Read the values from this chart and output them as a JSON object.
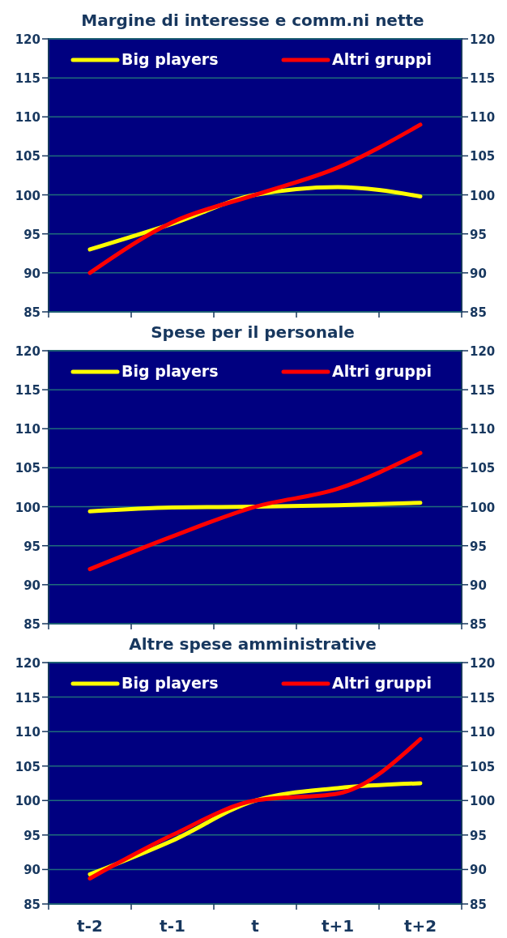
{
  "chart_data": [
    {
      "type": "line",
      "title": "Margine di interesse e comm.ni nette",
      "categories": [
        null,
        null,
        null,
        null,
        null
      ],
      "series": [
        {
          "name": "Big players",
          "color": "#ffff00",
          "values": [
            93,
            96.3,
            100,
            101,
            99.8
          ]
        },
        {
          "name": "Altri gruppi",
          "color": "#ff0000",
          "values": [
            90,
            96.5,
            100,
            103.5,
            109
          ]
        }
      ],
      "ylim": [
        85,
        120
      ],
      "yticks": [
        85,
        90,
        95,
        100,
        105,
        110,
        115,
        120
      ],
      "y2lim": [
        85,
        120
      ],
      "y2ticks": [
        85,
        90,
        95,
        100,
        105,
        110,
        115,
        120
      ],
      "grid": "y",
      "legend": "top",
      "tick_labels": "y"
    },
    {
      "type": "line",
      "title": "Spese per il personale",
      "categories": [
        null,
        null,
        null,
        null,
        null
      ],
      "series": [
        {
          "name": "Big players",
          "color": "#ffff00",
          "values": [
            99.4,
            99.9,
            100,
            100.2,
            100.5
          ]
        },
        {
          "name": "Altri gruppi",
          "color": "#ff0000",
          "values": [
            92,
            96.2,
            100,
            102.3,
            106.9
          ]
        }
      ],
      "ylim": [
        85,
        120
      ],
      "yticks": [
        85,
        90,
        95,
        100,
        105,
        110,
        115,
        120
      ],
      "y2lim": [
        85,
        120
      ],
      "y2ticks": [
        85,
        90,
        95,
        100,
        105,
        110,
        115,
        120
      ],
      "grid": "y",
      "legend": "top",
      "tick_labels": "y"
    },
    {
      "type": "line",
      "title": "Altre spese amministrative",
      "categories": [
        "t-2",
        "t-1",
        "t",
        "t+1",
        "t+2"
      ],
      "series": [
        {
          "name": "Big players",
          "color": "#ffff00",
          "values": [
            89.3,
            94.2,
            100,
            101.8,
            102.5
          ]
        },
        {
          "name": "Altri gruppi",
          "color": "#ff0000",
          "values": [
            88.7,
            95,
            100,
            101,
            108.9
          ]
        }
      ],
      "ylim": [
        85,
        120
      ],
      "yticks": [
        85,
        90,
        95,
        100,
        105,
        110,
        115,
        120
      ],
      "y2lim": [
        85,
        120
      ],
      "y2ticks": [
        85,
        90,
        95,
        100,
        105,
        110,
        115,
        120
      ],
      "grid": "y",
      "legend": "top"
    }
  ]
}
